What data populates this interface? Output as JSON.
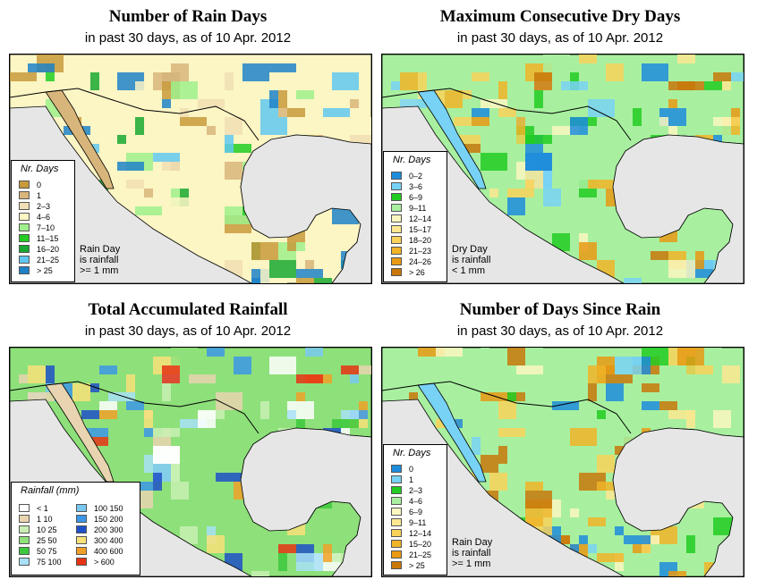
{
  "panels": {
    "rain_days": {
      "title": "Number of Rain Days",
      "subtitle": "in past 30 days, as of  10 Apr. 2012",
      "legend_title": "Nr. Days",
      "note": [
        "Rain Day",
        "is rainfall",
        ">= 1 mm"
      ],
      "legend": [
        {
          "label": "0",
          "color": "#c89a3c"
        },
        {
          "label": "1",
          "color": "#d8b57a"
        },
        {
          "label": "2–3",
          "color": "#f0deb4"
        },
        {
          "label": "4–6",
          "color": "#fcf5c4"
        },
        {
          "label": "7–10",
          "color": "#9ef08c"
        },
        {
          "label": "11–15",
          "color": "#22cc22"
        },
        {
          "label": "16–20",
          "color": "#19a832"
        },
        {
          "label": "21–25",
          "color": "#60c8f0"
        },
        {
          "label": "> 25",
          "color": "#1e82c8"
        }
      ]
    },
    "dry_days": {
      "title": "Maximum Consecutive Dry Days",
      "subtitle": "in past 30 days, as of  10 Apr. 2012",
      "legend_title": "Nr. Days",
      "note": [
        "Dry Day",
        "is rainfall",
        "< 1 mm"
      ],
      "legend": [
        {
          "label": "0–2",
          "color": "#1e8cdc"
        },
        {
          "label": "3–6",
          "color": "#78d2f5"
        },
        {
          "label": "6–9",
          "color": "#22cc22"
        },
        {
          "label": "9–11",
          "color": "#a8f0a0"
        },
        {
          "label": "12–14",
          "color": "#fcf7c0"
        },
        {
          "label": "15–17",
          "color": "#fbe890"
        },
        {
          "label": "18–20",
          "color": "#f8d25a"
        },
        {
          "label": "21–23",
          "color": "#f0b428"
        },
        {
          "label": "24–26",
          "color": "#e89a14"
        },
        {
          "label": "> 26",
          "color": "#c8780a"
        }
      ]
    },
    "rainfall": {
      "title": "Total Accumulated Rainfall",
      "subtitle": "in past 30 days, as of  10 Apr. 2012",
      "legend_title": "Rainfall (mm)",
      "legend_left": [
        {
          "label": "< 1",
          "color": "#ffffff"
        },
        {
          "label": "1    10",
          "color": "#e8d4b0"
        },
        {
          "label": "10    25",
          "color": "#c8f0b4"
        },
        {
          "label": "25    50",
          "color": "#8ee07a"
        },
        {
          "label": "50    75",
          "color": "#3cc83c"
        },
        {
          "label": "75    100",
          "color": "#a8e0f8"
        }
      ],
      "legend_right": [
        {
          "label": "100    150",
          "color": "#78c8f0"
        },
        {
          "label": "150    200",
          "color": "#3c96e6"
        },
        {
          "label": "200    300",
          "color": "#1e50c8"
        },
        {
          "label": "300    400",
          "color": "#f8e07a"
        },
        {
          "label": "400    600",
          "color": "#f0a028"
        },
        {
          "label": "> 600",
          "color": "#e63214"
        }
      ]
    },
    "since_rain": {
      "title": "Number of Days Since Rain",
      "subtitle": "in past 30 days, as of  10 Apr. 2012",
      "legend_title": "Nr. Days",
      "note": [
        "Rain Day",
        "is rainfall",
        ">= 1 mm"
      ],
      "legend": [
        {
          "label": "0",
          "color": "#1e8cdc"
        },
        {
          "label": "1",
          "color": "#78d2f5"
        },
        {
          "label": "2–3",
          "color": "#22cc22"
        },
        {
          "label": "4–6",
          "color": "#a8f0a0"
        },
        {
          "label": "6–9",
          "color": "#fcf7c0"
        },
        {
          "label": "9–11",
          "color": "#fbe890"
        },
        {
          "label": "12–14",
          "color": "#f8d25a"
        },
        {
          "label": "15–20",
          "color": "#f0b428"
        },
        {
          "label": "21–25",
          "color": "#e89a14"
        },
        {
          "label": "> 25",
          "color": "#c8780a"
        }
      ]
    }
  }
}
